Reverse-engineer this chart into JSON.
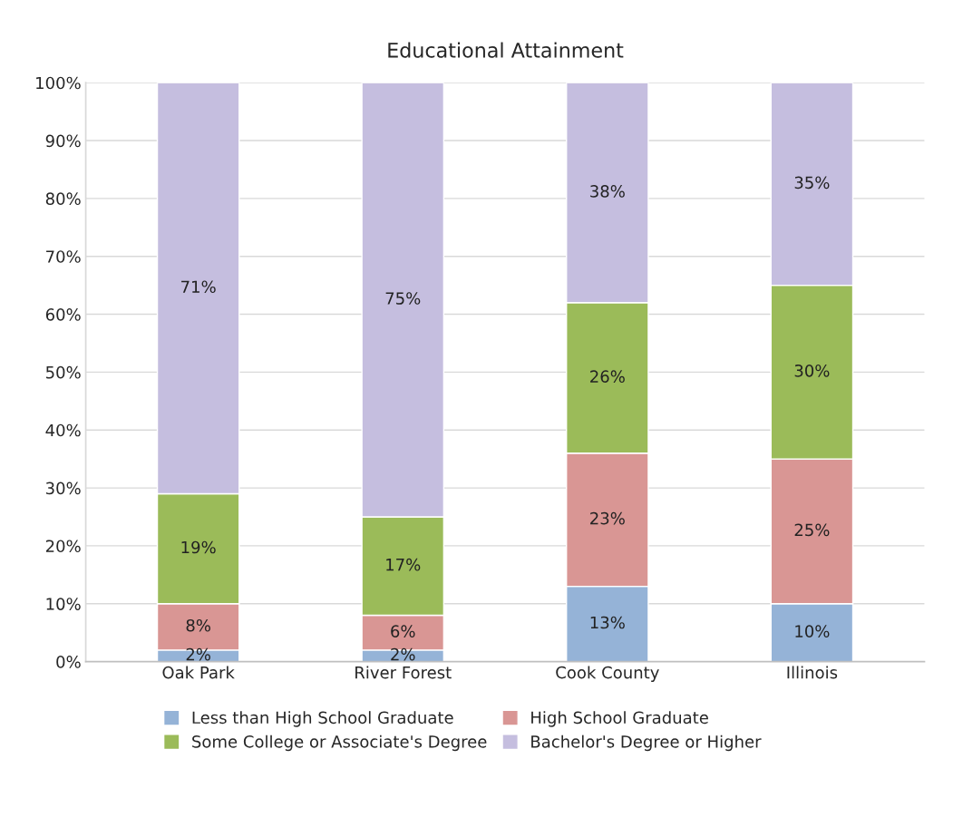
{
  "chart_data": {
    "type": "bar",
    "title": "Educational Attainment",
    "stacked": true,
    "categories": [
      "Oak Park",
      "River Forest",
      "Cook County",
      "Illinois"
    ],
    "series": [
      {
        "name": "Less than High School Graduate",
        "color": "#95b3d7",
        "values": [
          2,
          2,
          13,
          10
        ],
        "value_labels": [
          "2%",
          "2%",
          "13%",
          "10%"
        ]
      },
      {
        "name": "High School Graduate",
        "color": "#d99694",
        "values": [
          8,
          6,
          23,
          25
        ],
        "value_labels": [
          "8%",
          "6%",
          "23%",
          "25%"
        ]
      },
      {
        "name": "Some College or Associate's Degree",
        "color": "#9bbb59",
        "values": [
          19,
          17,
          26,
          30
        ],
        "value_labels": [
          "19%",
          "17%",
          "26%",
          "30%"
        ]
      },
      {
        "name": "Bachelor's Degree or Higher",
        "color": "#c5bedf",
        "values": [
          71,
          75,
          38,
          35
        ],
        "value_labels": [
          "71%",
          "75%",
          "38%",
          "35%"
        ]
      }
    ],
    "ylim": [
      0,
      100
    ],
    "yticks": [
      {
        "value": 0,
        "label": "0%"
      },
      {
        "value": 10,
        "label": "10%"
      },
      {
        "value": 20,
        "label": "20%"
      },
      {
        "value": 30,
        "label": "30%"
      },
      {
        "value": 40,
        "label": "40%"
      },
      {
        "value": 50,
        "label": "50%"
      },
      {
        "value": 60,
        "label": "60%"
      },
      {
        "value": 70,
        "label": "70%"
      },
      {
        "value": 80,
        "label": "80%"
      },
      {
        "value": 90,
        "label": "90%"
      },
      {
        "value": 100,
        "label": "100%"
      }
    ],
    "grid": "y",
    "legend": "bottom"
  }
}
